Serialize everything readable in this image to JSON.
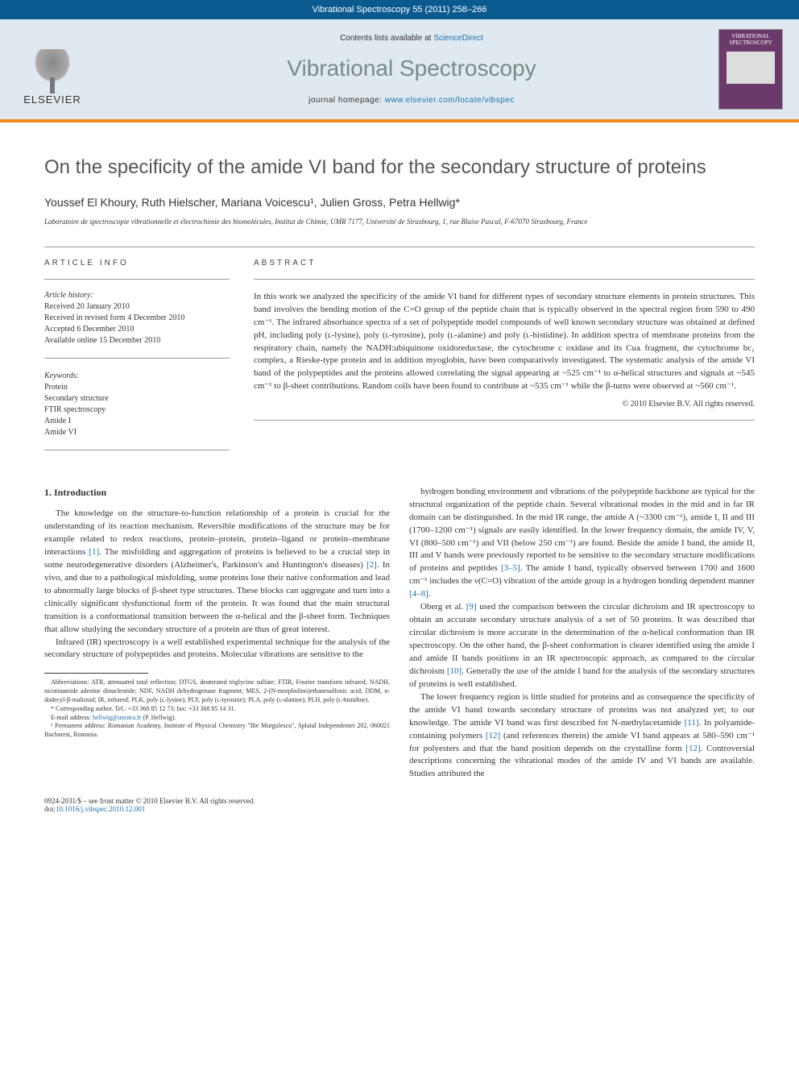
{
  "header": {
    "citation": "Vibrational Spectroscopy 55 (2011) 258–266",
    "contents_prefix": "Contents lists available at ",
    "contents_link": "ScienceDirect",
    "journal_name": "Vibrational Spectroscopy",
    "homepage_prefix": "journal homepage: ",
    "homepage_url": "www.elsevier.com/locate/vibspec",
    "publisher": "ELSEVIER",
    "cover_title": "VIBRATIONAL SPECTROSCOPY"
  },
  "article": {
    "title": "On the specificity of the amide VI band for the secondary structure of proteins",
    "authors": "Youssef El Khoury, Ruth Hielscher, Mariana Voicescu¹, Julien Gross, Petra Hellwig*",
    "affiliation": "Laboratoire de spectroscopie vibrationnelle et électrochimie des biomolécules, Institut de Chimie, UMR 7177, Université de Strasbourg, 1, rue Blaise Pascal, F-67070 Strasbourg, France"
  },
  "info": {
    "info_label": "ARTICLE INFO",
    "history_label": "Article history:",
    "history": [
      "Received 20 January 2010",
      "Received in revised form 4 December 2010",
      "Accepted 6 December 2010",
      "Available online 15 December 2010"
    ],
    "keywords_label": "Keywords:",
    "keywords": [
      "Protein",
      "Secondary structure",
      "FTIR spectroscopy",
      "Amide I",
      "Amide VI"
    ]
  },
  "abstract": {
    "label": "ABSTRACT",
    "text": "In this work we analyzed the specificity of the amide VI band for different types of secondary structure elements in protein structures. This band involves the bending motion of the C=O group of the peptide chain that is typically observed in the spectral region from 590 to 490 cm⁻¹. The infrared absorbance spectra of a set of polypeptide model compounds of well known secondary structure was obtained at defined pH, including poly (ʟ-lysine), poly (ʟ-tyrosine), poly (ʟ-alanine) and poly (ʟ-histidine). In addition spectra of membrane proteins from the respiratory chain, namely the NADH:ubiquinone oxidoreductase, the cytochrome c oxidase and its Cuᴀ fragment, the cytochrome bc₁ complex, a Rieske-type protein and in addition myoglobin, have been comparatively investigated. The systematic analysis of the amide VI band of the polypeptides and the proteins allowed correlating the signal appearing at ~525 cm⁻¹ to α-helical structures and signals at ~545 cm⁻¹ to β-sheet contributions. Random coils have been found to contribute at ~535 cm⁻¹ while the β-turns were observed at ~560 cm⁻¹.",
    "copyright": "© 2010 Elsevier B.V. All rights reserved."
  },
  "body": {
    "section_heading": "1. Introduction",
    "col1_p1": "The knowledge on the structure-to-function relationship of a protein is crucial for the understanding of its reaction mechanism. Reversible modifications of the structure may be for example related to redox reactions, protein–protein, protein–ligand or protein–membrane interactions [1]. The misfolding and aggregation of proteins is believed to be a crucial step in some neurodegenerative disorders (Alzheimer's, Parkinson's and Huntington's diseases) [2]. In vivo, and due to a pathological misfolding, some proteins lose their native conformation and lead to abnormally large blocks of β-sheet type structures. These blocks can aggregate and turn into a clinically significant dysfunctional form of the protein. It was found that the main structural transition is a conformational transition between the α-helical and the β-sheet form. Techniques that allow studying the secondary structure of a protein are thus of great interest.",
    "col1_p2": "Infrared (IR) spectroscopy is a well established experimental technique for the analysis of the secondary structure of polypeptides and proteins. Molecular vibrations are sensitive to the",
    "col2_p1": "hydrogen bonding environment and vibrations of the polypeptide backbone are typical for the structural organization of the peptide chain. Several vibrational modes in the mid and in far IR domain can be distinguished. In the mid IR range, the amide A (~3300 cm⁻¹), amide I, II and III (1700–1200 cm⁻¹) signals are easily identified. In the lower frequency domain, the amide IV, V, VI (800–500 cm⁻¹) and VII (below 250 cm⁻¹) are found. Beside the amide I band, the amide II, III and V bands were previously reported to be sensitive to the secondary structure modifications of proteins and peptides [3–5]. The amide I band, typically observed between 1700 and 1600 cm⁻¹ includes the ν(C=O) vibration of the amide group in a hydrogen bonding dependent manner [4–8].",
    "col2_p2": "Oberg et al. [9] used the comparison between the circular dichroism and IR spectroscopy to obtain an accurate secondary structure analysis of a set of 50 proteins. It was described that circular dichroism is more accurate in the determination of the α-helical conformation than IR spectroscopy. On the other hand, the β-sheet conformation is clearer identified using the amide I and amide II bands positions in an IR spectroscopic approach, as compared to the circular dichroism [10]. Generally the use of the amide I band for the analysis of the secondary structures of proteins is well established.",
    "col2_p3": "The lower frequency region is little studied for proteins and as consequence the specificity of the amide VI band towards secondary structure of proteins was not analyzed yet; to our knowledge. The amide VI band was first described for N-methylacetamide [11]. In polyamide-containing polymers [12] (and references therein) the amide VI band appears at 580–590 cm⁻¹ for polyesters and that the band position depends on the crystalline form [12]. Controversial descriptions concerning the vibrational modes of the amide IV and VI bands are available. Studies attributed the"
  },
  "footnotes": {
    "abbrev": "Abbreviations: ATR, attenuated total reflection; DTGS, deuterated triglycine sulfate; FTIR, Fourier transform infrared; NADH, nicotinamide adenine dinucleotide; NDF, NADH dehydrogenase fragment; MES, 2-(N-morpholino)ethanesulfonic acid; DDM, n-dodecyl-β-maltosid; IR, infrared; PLK, poly (ʟ-lysine); PLY, poly (ʟ-tyrosine); PLA, poly (ʟ-alanine); PLH, poly (ʟ-histidine).",
    "corresponding": "* Corresponding author. Tel.: +33 368 85 12 73; fax: +33 368 85 14 31.",
    "email_label": "E-mail address: ",
    "email": "hellwig@unistra.fr",
    "email_person": " (P. Hellwig).",
    "perm": "¹ Permanent address: Romanian Academy, Institute of Physical Chemistry \"Ilie Murgulescu\", Splaiul Independentei 202, 060021 Bucharest, Romania."
  },
  "footer": {
    "isbn": "0924-2031/$ – see front matter © 2010 Elsevier B.V. All rights reserved.",
    "doi_prefix": "doi:",
    "doi": "10.1016/j.vibspec.2010.12.001"
  },
  "colors": {
    "header_bg": "#0a5a8f",
    "band_bg": "#e0e9ef",
    "accent_orange": "#f28a1a",
    "link": "#1a6fa8",
    "journal_gray": "#7a8a8a",
    "cover_purple": "#6b3a6b"
  }
}
